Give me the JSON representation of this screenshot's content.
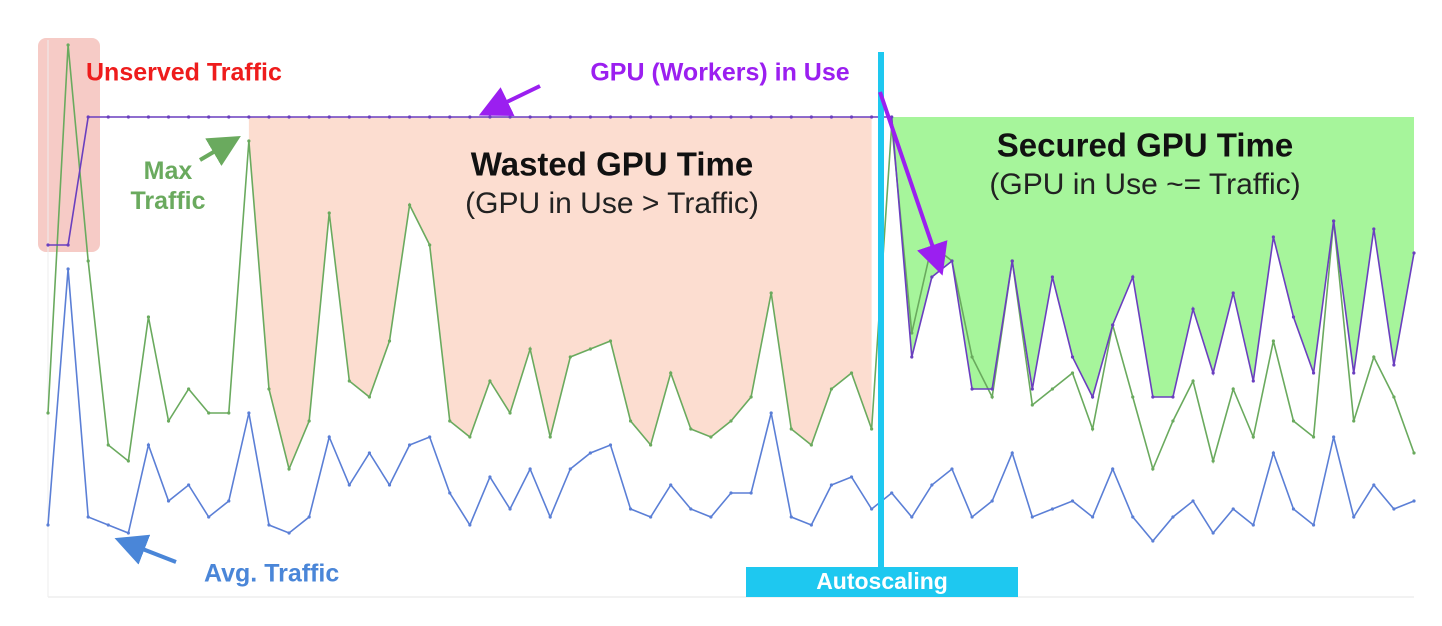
{
  "chart_data": {
    "type": "line",
    "x": [
      0,
      1,
      2,
      3,
      4,
      5,
      6,
      7,
      8,
      9,
      10,
      11,
      12,
      13,
      14,
      15,
      16,
      17,
      18,
      19,
      20,
      21,
      22,
      23,
      24,
      25,
      26,
      27,
      28,
      29,
      30,
      31,
      32,
      33,
      34,
      35,
      36,
      37,
      38,
      39,
      40,
      41,
      42,
      43,
      44,
      45,
      46,
      47,
      48,
      49,
      50,
      51,
      52,
      53,
      54,
      55,
      56,
      57,
      58,
      59,
      60,
      61,
      62,
      63,
      64,
      65,
      66,
      67,
      68
    ],
    "xlim": [
      0,
      68
    ],
    "ylim": [
      0,
      7
    ],
    "series": [
      {
        "name": "Max Traffic",
        "color": "#6aaa5e",
        "values": [
          2.3,
          6.9,
          4.2,
          1.9,
          1.7,
          3.5,
          2.2,
          2.6,
          2.3,
          2.3,
          5.7,
          2.6,
          1.6,
          2.2,
          4.8,
          2.7,
          2.5,
          3.2,
          4.9,
          4.4,
          2.2,
          2.0,
          2.7,
          2.3,
          3.1,
          2.0,
          3.0,
          3.1,
          3.2,
          2.2,
          1.9,
          2.8,
          2.1,
          2.0,
          2.2,
          2.5,
          3.8,
          2.1,
          1.9,
          2.6,
          2.8,
          2.1,
          5.9,
          3.3,
          4.4,
          4.2,
          3.0,
          2.5,
          4.2,
          2.4,
          2.6,
          2.8,
          2.1,
          3.4,
          2.5,
          1.6,
          2.2,
          2.7,
          1.7,
          2.6,
          2.0,
          3.2,
          2.2,
          2.0,
          4.7,
          2.2,
          3.0,
          2.5,
          1.8
        ]
      },
      {
        "name": "Avg. Traffic",
        "color": "#5b7fd6",
        "values": [
          0.9,
          4.1,
          1.0,
          0.9,
          0.8,
          1.9,
          1.2,
          1.4,
          1.0,
          1.2,
          2.3,
          0.9,
          0.8,
          1.0,
          2.0,
          1.4,
          1.8,
          1.4,
          1.9,
          2.0,
          1.3,
          0.9,
          1.5,
          1.1,
          1.6,
          1.0,
          1.6,
          1.8,
          1.9,
          1.1,
          1.0,
          1.4,
          1.1,
          1.0,
          1.3,
          1.3,
          2.3,
          1.0,
          0.9,
          1.4,
          1.5,
          1.1,
          1.3,
          1.0,
          1.4,
          1.6,
          1.0,
          1.2,
          1.8,
          1.0,
          1.1,
          1.2,
          1.0,
          1.6,
          1.0,
          0.7,
          1.0,
          1.2,
          0.8,
          1.1,
          0.9,
          1.8,
          1.1,
          0.9,
          2.0,
          1.0,
          1.4,
          1.1,
          1.2
        ]
      },
      {
        "name": "GPU (Workers) in Use",
        "color": "#6a3fbf",
        "values": [
          4.4,
          4.4,
          6.0,
          6.0,
          6.0,
          6.0,
          6.0,
          6.0,
          6.0,
          6.0,
          6.0,
          6.0,
          6.0,
          6.0,
          6.0,
          6.0,
          6.0,
          6.0,
          6.0,
          6.0,
          6.0,
          6.0,
          6.0,
          6.0,
          6.0,
          6.0,
          6.0,
          6.0,
          6.0,
          6.0,
          6.0,
          6.0,
          6.0,
          6.0,
          6.0,
          6.0,
          6.0,
          6.0,
          6.0,
          6.0,
          6.0,
          6.0,
          6.0,
          3.0,
          4.0,
          4.2,
          2.6,
          2.6,
          4.2,
          2.6,
          4.0,
          3.0,
          2.5,
          3.4,
          4.0,
          2.5,
          2.5,
          3.6,
          2.8,
          3.8,
          2.7,
          4.5,
          3.5,
          2.8,
          4.7,
          2.8,
          4.6,
          2.9,
          4.3
        ]
      }
    ],
    "annotations": {
      "unserved": "Unserved Traffic",
      "wasted": "Wasted GPU Time",
      "wasted_note": "(GPU in Use > Traffic)",
      "secured": "Secured GPU Time",
      "secured_note": "(GPU in Use ~= Traffic)",
      "autoscaling": "Autoscaling"
    }
  }
}
